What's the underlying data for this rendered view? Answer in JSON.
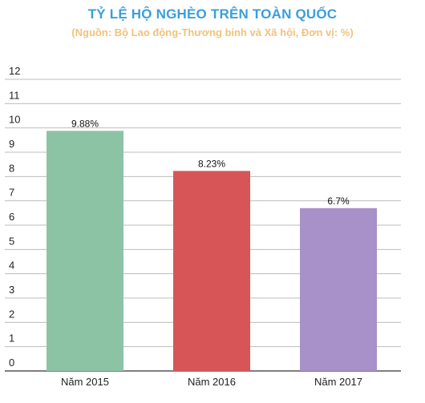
{
  "chart_data": {
    "type": "bar",
    "title": "TỶ LỆ HỘ NGHÈO TRÊN TOÀN QUỐC",
    "subtitle": "(Nguồn: Bộ Lao động-Thương binh và Xã hội, Đơn vị: %)",
    "categories": [
      "Năm 2015",
      "Năm 2016",
      "Năm 2017"
    ],
    "values": [
      9.88,
      8.23,
      6.7
    ],
    "value_labels": [
      "9.88%",
      "8.23%",
      "6.7%"
    ],
    "bar_colors": [
      "#8dc3a5",
      "#d75557",
      "#a791c8"
    ],
    "ylim": [
      0,
      12
    ],
    "yticks": [
      "0",
      "1",
      "2",
      "3",
      "4",
      "5",
      "6",
      "7",
      "8",
      "9",
      "10",
      "11",
      "12"
    ],
    "grid": true,
    "xlabel": "",
    "ylabel": ""
  }
}
